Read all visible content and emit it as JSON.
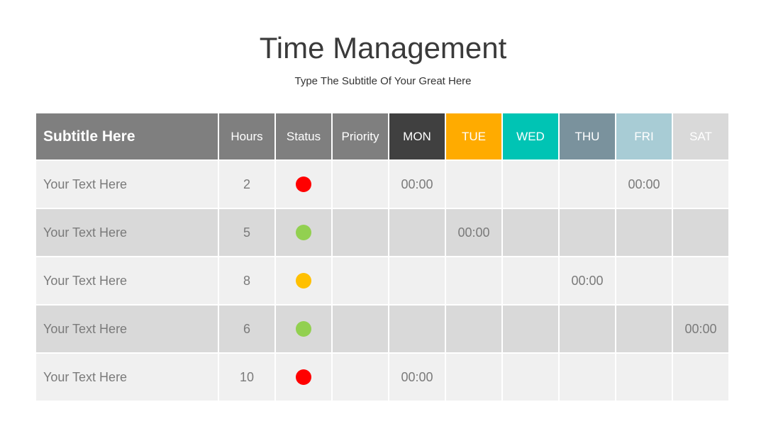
{
  "header": {
    "title": "Time Management",
    "subtitle": "Type The Subtitle Of Your Great Here"
  },
  "table": {
    "columns": [
      {
        "label": "Subtitle Here",
        "color": "#7f7f7f"
      },
      {
        "label": "Hours",
        "color": "#7f7f7f"
      },
      {
        "label": "Status",
        "color": "#7f7f7f"
      },
      {
        "label": "Priority",
        "color": "#7f7f7f"
      },
      {
        "label": "MON",
        "color": "#404040"
      },
      {
        "label": "TUE",
        "color": "#ffab00"
      },
      {
        "label": "WED",
        "color": "#00c4b4"
      },
      {
        "label": "THU",
        "color": "#7a929d"
      },
      {
        "label": "FRI",
        "color": "#a8ccd5"
      },
      {
        "label": "SAT",
        "color": "#d9d9d9"
      }
    ],
    "rows": [
      {
        "label": "Your Text Here",
        "hours": 2,
        "status": "#ff0000",
        "times": [
          "00:00",
          null,
          null,
          null,
          "00:00",
          null
        ]
      },
      {
        "label": "Your Text Here",
        "hours": 5,
        "status": "#92d050",
        "times": [
          null,
          "00:00",
          null,
          null,
          null,
          null
        ]
      },
      {
        "label": "Your Text Here",
        "hours": 8,
        "status": "#ffc000",
        "times": [
          null,
          null,
          null,
          "00:00",
          null,
          null
        ]
      },
      {
        "label": "Your Text Here",
        "hours": 6,
        "status": "#92d050",
        "times": [
          null,
          null,
          null,
          null,
          null,
          "00:00"
        ]
      },
      {
        "label": "Your Text Here",
        "hours": 10,
        "status": "#ff0000",
        "times": [
          "00:00",
          null,
          null,
          null,
          null,
          null
        ]
      }
    ]
  }
}
